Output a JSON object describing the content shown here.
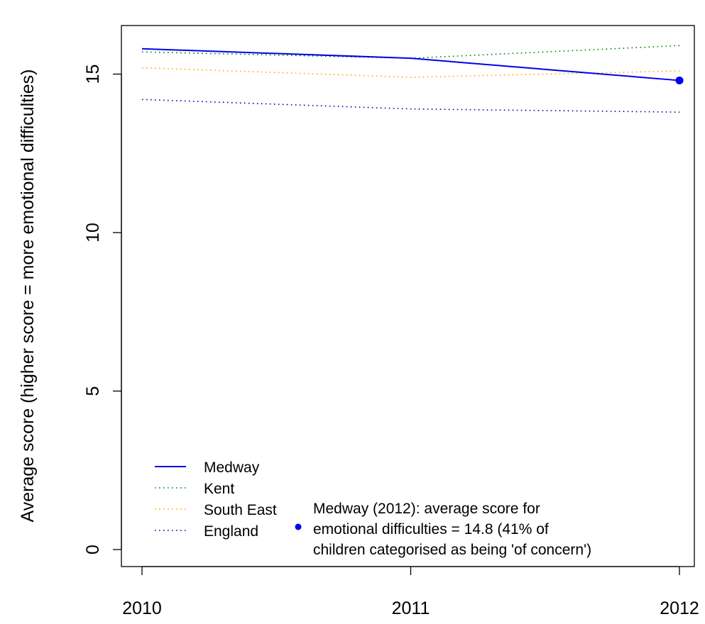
{
  "chart_data": {
    "type": "line",
    "title": "",
    "xlabel": "",
    "ylabel": "Average score (higher score = more emotional difficulties)",
    "x": [
      2010,
      2011,
      2012
    ],
    "xlim": [
      2010,
      2012
    ],
    "ylim": [
      0,
      16
    ],
    "x_ticks": [
      2010,
      2011,
      2012
    ],
    "y_ticks": [
      0,
      5,
      10,
      15
    ],
    "grid": false,
    "legend_position": "bottom-left",
    "series": [
      {
        "name": "Medway",
        "values": [
          15.8,
          15.5,
          14.8
        ],
        "color": "#0000ee",
        "style": "solid"
      },
      {
        "name": "Kent",
        "values": [
          15.7,
          15.5,
          15.9
        ],
        "color": "#008000",
        "style": "dotted"
      },
      {
        "name": "South East",
        "values": [
          15.2,
          14.9,
          15.1
        ],
        "color": "#ffa500",
        "style": "dotted"
      },
      {
        "name": "England",
        "values": [
          14.2,
          13.9,
          13.8
        ],
        "color": "#0000aa",
        "style": "dotted"
      }
    ],
    "highlight_point": {
      "series": "Medway",
      "x": 2012,
      "y": 14.8,
      "color": "#0000ee"
    },
    "annotation": {
      "lines": [
        "Medway (2012): average score for",
        "emotional difficulties = 14.8 (41% of",
        "children categorised as being 'of concern')"
      ],
      "marker_color": "#0000ee"
    }
  }
}
